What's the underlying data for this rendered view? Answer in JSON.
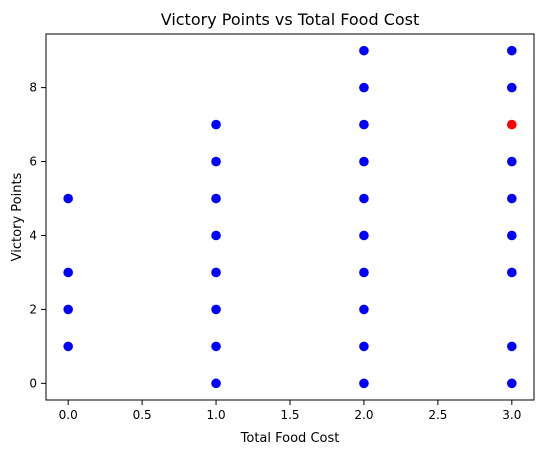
{
  "chart_data": {
    "type": "scatter",
    "title": "Victory Points vs Total Food Cost",
    "xlabel": "Total Food Cost",
    "ylabel": "Victory Points",
    "xlim": [
      -0.15,
      3.15
    ],
    "ylim": [
      -0.45,
      9.45
    ],
    "xticks": [
      0.0,
      0.5,
      1.0,
      1.5,
      2.0,
      2.5,
      3.0
    ],
    "xtick_labels": [
      "0.0",
      "0.5",
      "1.0",
      "1.5",
      "2.0",
      "2.5",
      "3.0"
    ],
    "yticks": [
      0,
      2,
      4,
      6,
      8
    ],
    "ytick_labels": [
      "0",
      "2",
      "4",
      "6",
      "8"
    ],
    "grid": false,
    "legend": "none",
    "colors": {
      "points": "#0000ff",
      "highlight": "#ff0000",
      "axes": "#000000",
      "background": "#ffffff"
    },
    "series": [
      {
        "color": "#0000ff",
        "points": [
          {
            "x": 0,
            "y": 1
          },
          {
            "x": 0,
            "y": 2
          },
          {
            "x": 0,
            "y": 3
          },
          {
            "x": 0,
            "y": 5
          },
          {
            "x": 1,
            "y": 0
          },
          {
            "x": 1,
            "y": 1
          },
          {
            "x": 1,
            "y": 2
          },
          {
            "x": 1,
            "y": 3
          },
          {
            "x": 1,
            "y": 4
          },
          {
            "x": 1,
            "y": 5
          },
          {
            "x": 1,
            "y": 6
          },
          {
            "x": 1,
            "y": 7
          },
          {
            "x": 2,
            "y": 0
          },
          {
            "x": 2,
            "y": 1
          },
          {
            "x": 2,
            "y": 2
          },
          {
            "x": 2,
            "y": 3
          },
          {
            "x": 2,
            "y": 4
          },
          {
            "x": 2,
            "y": 5
          },
          {
            "x": 2,
            "y": 6
          },
          {
            "x": 2,
            "y": 7
          },
          {
            "x": 2,
            "y": 8
          },
          {
            "x": 2,
            "y": 9
          },
          {
            "x": 3,
            "y": 0
          },
          {
            "x": 3,
            "y": 1
          },
          {
            "x": 3,
            "y": 3
          },
          {
            "x": 3,
            "y": 4
          },
          {
            "x": 3,
            "y": 5
          },
          {
            "x": 3,
            "y": 6
          },
          {
            "x": 3,
            "y": 8
          },
          {
            "x": 3,
            "y": 9
          }
        ]
      },
      {
        "color": "#ff0000",
        "points": [
          {
            "x": 3,
            "y": 7
          }
        ]
      }
    ]
  }
}
